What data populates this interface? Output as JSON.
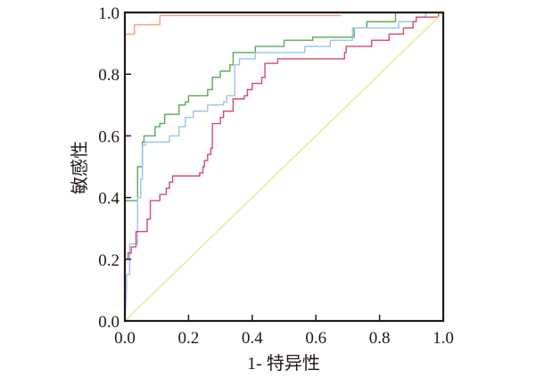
{
  "chart_data": {
    "type": "line",
    "title": "",
    "xlabel": "1- 特异性",
    "ylabel": "敏感性",
    "xlim": [
      0,
      1
    ],
    "ylim": [
      0,
      1
    ],
    "grid": false,
    "xticks": [
      "0.0",
      "0.2",
      "0.4",
      "0.6",
      "0.8",
      "1.0"
    ],
    "yticks": [
      "0.0",
      "0.2",
      "0.4",
      "0.6",
      "0.8",
      "1.0"
    ],
    "series": [
      {
        "name": "orange",
        "color": "#f4a07a",
        "step": true,
        "points": [
          [
            0,
            0.87
          ],
          [
            0,
            0.93
          ],
          [
            0.03,
            0.93
          ],
          [
            0.03,
            0.96
          ],
          [
            0.11,
            0.96
          ],
          [
            0.11,
            0.99
          ],
          [
            0.68,
            0.99
          ]
        ]
      },
      {
        "name": "green",
        "color": "#5aa85a",
        "step": true,
        "points": [
          [
            0,
            0.35
          ],
          [
            0,
            0.39
          ],
          [
            0.04,
            0.39
          ],
          [
            0.04,
            0.5
          ],
          [
            0.055,
            0.5
          ],
          [
            0.055,
            0.58
          ],
          [
            0.06,
            0.58
          ],
          [
            0.06,
            0.6
          ],
          [
            0.095,
            0.6
          ],
          [
            0.095,
            0.63
          ],
          [
            0.11,
            0.63
          ],
          [
            0.11,
            0.64
          ],
          [
            0.125,
            0.64
          ],
          [
            0.125,
            0.67
          ],
          [
            0.17,
            0.67
          ],
          [
            0.17,
            0.7
          ],
          [
            0.19,
            0.7
          ],
          [
            0.19,
            0.71
          ],
          [
            0.2,
            0.71
          ],
          [
            0.2,
            0.73
          ],
          [
            0.26,
            0.73
          ],
          [
            0.26,
            0.75
          ],
          [
            0.275,
            0.75
          ],
          [
            0.275,
            0.79
          ],
          [
            0.3,
            0.79
          ],
          [
            0.3,
            0.81
          ],
          [
            0.33,
            0.81
          ],
          [
            0.33,
            0.83
          ],
          [
            0.34,
            0.83
          ],
          [
            0.34,
            0.87
          ],
          [
            0.41,
            0.87
          ],
          [
            0.41,
            0.89
          ],
          [
            0.5,
            0.89
          ],
          [
            0.5,
            0.91
          ],
          [
            0.59,
            0.91
          ],
          [
            0.59,
            0.92
          ],
          [
            0.72,
            0.92
          ],
          [
            0.72,
            0.95
          ],
          [
            0.76,
            0.95
          ],
          [
            0.76,
            0.97
          ],
          [
            0.85,
            0.97
          ],
          [
            0.85,
            1.0
          ],
          [
            1,
            1
          ]
        ]
      },
      {
        "name": "blue",
        "color": "#9cc3e8",
        "step": true,
        "points": [
          [
            0,
            0
          ],
          [
            0.005,
            0.1
          ],
          [
            0.005,
            0.15
          ],
          [
            0.015,
            0.15
          ],
          [
            0.015,
            0.25
          ],
          [
            0.04,
            0.25
          ],
          [
            0.04,
            0.4
          ],
          [
            0.05,
            0.4
          ],
          [
            0.05,
            0.46
          ],
          [
            0.055,
            0.46
          ],
          [
            0.055,
            0.57
          ],
          [
            0.065,
            0.57
          ],
          [
            0.065,
            0.58
          ],
          [
            0.14,
            0.58
          ],
          [
            0.14,
            0.6
          ],
          [
            0.17,
            0.6
          ],
          [
            0.17,
            0.63
          ],
          [
            0.19,
            0.63
          ],
          [
            0.19,
            0.66
          ],
          [
            0.215,
            0.66
          ],
          [
            0.215,
            0.68
          ],
          [
            0.26,
            0.68
          ],
          [
            0.26,
            0.7
          ],
          [
            0.31,
            0.7
          ],
          [
            0.31,
            0.71
          ],
          [
            0.32,
            0.71
          ],
          [
            0.32,
            0.73
          ],
          [
            0.345,
            0.73
          ],
          [
            0.345,
            0.83
          ],
          [
            0.36,
            0.83
          ],
          [
            0.36,
            0.85
          ],
          [
            0.41,
            0.85
          ],
          [
            0.41,
            0.87
          ],
          [
            0.565,
            0.87
          ],
          [
            0.565,
            0.89
          ],
          [
            0.645,
            0.89
          ],
          [
            0.645,
            0.91
          ],
          [
            0.715,
            0.91
          ],
          [
            0.715,
            0.95
          ],
          [
            0.86,
            0.95
          ],
          [
            0.86,
            0.97
          ],
          [
            0.915,
            0.97
          ],
          [
            0.915,
            0.985
          ],
          [
            0.945,
            0.985
          ],
          [
            0.945,
            1.0
          ],
          [
            1,
            1
          ]
        ]
      },
      {
        "name": "red",
        "color": "#d9486a",
        "step": true,
        "points": [
          [
            0,
            0.2
          ],
          [
            0.01,
            0.2
          ],
          [
            0.01,
            0.22
          ],
          [
            0.02,
            0.22
          ],
          [
            0.02,
            0.24
          ],
          [
            0.035,
            0.24
          ],
          [
            0.035,
            0.29
          ],
          [
            0.07,
            0.29
          ],
          [
            0.07,
            0.33
          ],
          [
            0.08,
            0.33
          ],
          [
            0.08,
            0.39
          ],
          [
            0.11,
            0.39
          ],
          [
            0.11,
            0.41
          ],
          [
            0.13,
            0.41
          ],
          [
            0.13,
            0.43
          ],
          [
            0.14,
            0.43
          ],
          [
            0.14,
            0.45
          ],
          [
            0.15,
            0.45
          ],
          [
            0.15,
            0.47
          ],
          [
            0.235,
            0.47
          ],
          [
            0.235,
            0.48
          ],
          [
            0.245,
            0.48
          ],
          [
            0.245,
            0.5
          ],
          [
            0.25,
            0.5
          ],
          [
            0.25,
            0.52
          ],
          [
            0.26,
            0.52
          ],
          [
            0.26,
            0.54
          ],
          [
            0.27,
            0.54
          ],
          [
            0.27,
            0.56
          ],
          [
            0.275,
            0.56
          ],
          [
            0.275,
            0.64
          ],
          [
            0.3,
            0.64
          ],
          [
            0.3,
            0.66
          ],
          [
            0.31,
            0.66
          ],
          [
            0.31,
            0.68
          ],
          [
            0.34,
            0.68
          ],
          [
            0.34,
            0.72
          ],
          [
            0.375,
            0.72
          ],
          [
            0.375,
            0.73
          ],
          [
            0.385,
            0.73
          ],
          [
            0.385,
            0.75
          ],
          [
            0.4,
            0.75
          ],
          [
            0.4,
            0.77
          ],
          [
            0.43,
            0.77
          ],
          [
            0.43,
            0.79
          ],
          [
            0.44,
            0.79
          ],
          [
            0.44,
            0.835
          ],
          [
            0.48,
            0.835
          ],
          [
            0.48,
            0.85
          ],
          [
            0.69,
            0.85
          ],
          [
            0.69,
            0.87
          ],
          [
            0.695,
            0.87
          ],
          [
            0.695,
            0.89
          ],
          [
            0.775,
            0.89
          ],
          [
            0.775,
            0.91
          ],
          [
            0.83,
            0.91
          ],
          [
            0.83,
            0.93
          ],
          [
            0.875,
            0.93
          ],
          [
            0.875,
            0.95
          ],
          [
            0.905,
            0.95
          ],
          [
            0.905,
            0.97
          ],
          [
            0.915,
            0.97
          ],
          [
            0.915,
            0.985
          ],
          [
            0.985,
            0.985
          ],
          [
            0.985,
            1.0
          ],
          [
            1,
            1
          ]
        ]
      },
      {
        "name": "reference",
        "color": "#e8e88a",
        "step": false,
        "points": [
          [
            0,
            0
          ],
          [
            1,
            1
          ]
        ]
      }
    ]
  }
}
